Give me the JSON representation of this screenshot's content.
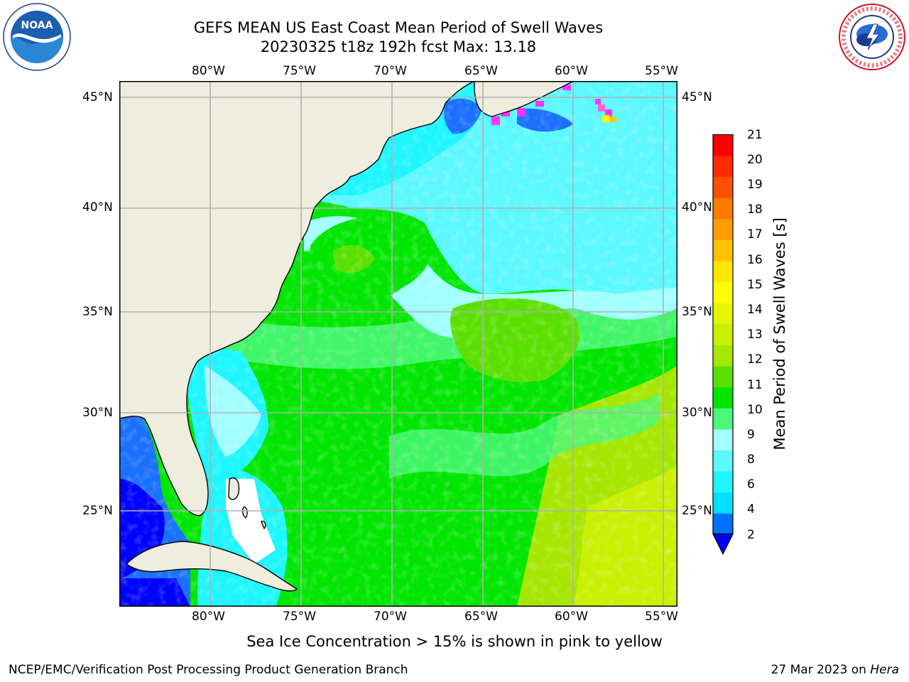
{
  "title": {
    "line1": "GEFS MEAN US East Coast Mean Period of Swell Waves",
    "line2": "20230325 t18z 192h fcst   Max: 13.18"
  },
  "logos": {
    "left": {
      "icon": "noaa-logo",
      "text": "NOAA"
    },
    "right": {
      "icon": "nws-logo",
      "text": "NATIONAL WEATHER SERVICE"
    }
  },
  "map": {
    "lon_ticks": [
      "80°W",
      "75°W",
      "70°W",
      "65°W",
      "60°W",
      "55°W"
    ],
    "lat_ticks": [
      "45°N",
      "40°N",
      "35°N",
      "30°N",
      "25°N"
    ],
    "lon_values": [
      -80,
      -75,
      -70,
      -65,
      -60,
      -55
    ],
    "lat_values": [
      45,
      40,
      35,
      30,
      25
    ],
    "extent": {
      "lon_min": -85,
      "lon_max": -54.2,
      "lat_min": 20.5,
      "lat_max": 45.8
    },
    "max_value": 13.18,
    "colors": {
      "land": "#efedde",
      "grid": "#b0b0b0",
      "coast": "#000000"
    }
  },
  "colorbar": {
    "title": "Mean Period of Swell Waves [s]",
    "ticks": [
      "21",
      "20",
      "19",
      "18",
      "17",
      "16",
      "15",
      "14",
      "13",
      "12",
      "11",
      "10",
      "9",
      "8",
      "6",
      "4",
      "2"
    ],
    "colors_bottom_to_top": [
      "#0070ff",
      "#00e0ff",
      "#1ef5ff",
      "#5cf8ff",
      "#a2ffff",
      "#4cf77a",
      "#00e600",
      "#5ae000",
      "#a6e600",
      "#c8f000",
      "#e6f500",
      "#ffff00",
      "#ffe600",
      "#ffc200",
      "#ff9c00",
      "#ff7a00",
      "#ff5000",
      "#ff2a00",
      "#ff0000"
    ],
    "extend_min_color": "#0000ff"
  },
  "note": "Sea Ice Concentration > 15% is shown in pink to yellow",
  "footer": {
    "left": "NCEP/EMC/Verification Post Processing Product Generation Branch",
    "right_date": "27 Mar 2023 on",
    "right_host": "Hera"
  }
}
